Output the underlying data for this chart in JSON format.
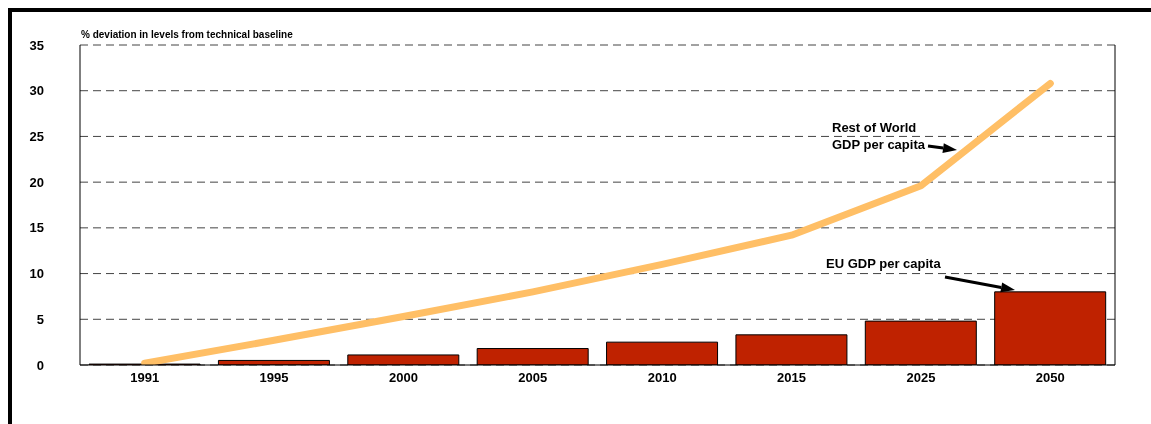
{
  "chart_data": {
    "type": "bar",
    "ylabel": "% deviation in levels from technical baseline",
    "categories": [
      "1991",
      "1995",
      "2000",
      "2005",
      "2010",
      "2015",
      "2025",
      "2050"
    ],
    "series": [
      {
        "name": "EU GDP per capita",
        "color": "#bf2200",
        "values": [
          0.1,
          0.5,
          1.1,
          1.8,
          2.5,
          3.3,
          4.8,
          8.0
        ]
      },
      {
        "name": "Rest of World GDP per capita",
        "type": "line",
        "color": "#ffbf66",
        "values": [
          0.2,
          2.7,
          5.3,
          8.0,
          11.0,
          14.2,
          19.6,
          30.8
        ]
      }
    ],
    "ylim": [
      0,
      35
    ],
    "yticks": [
      0,
      5,
      10,
      15,
      20,
      25,
      30,
      35
    ],
    "grid": "y",
    "line_style": "solid",
    "marker": "none",
    "legend": false
  }
}
